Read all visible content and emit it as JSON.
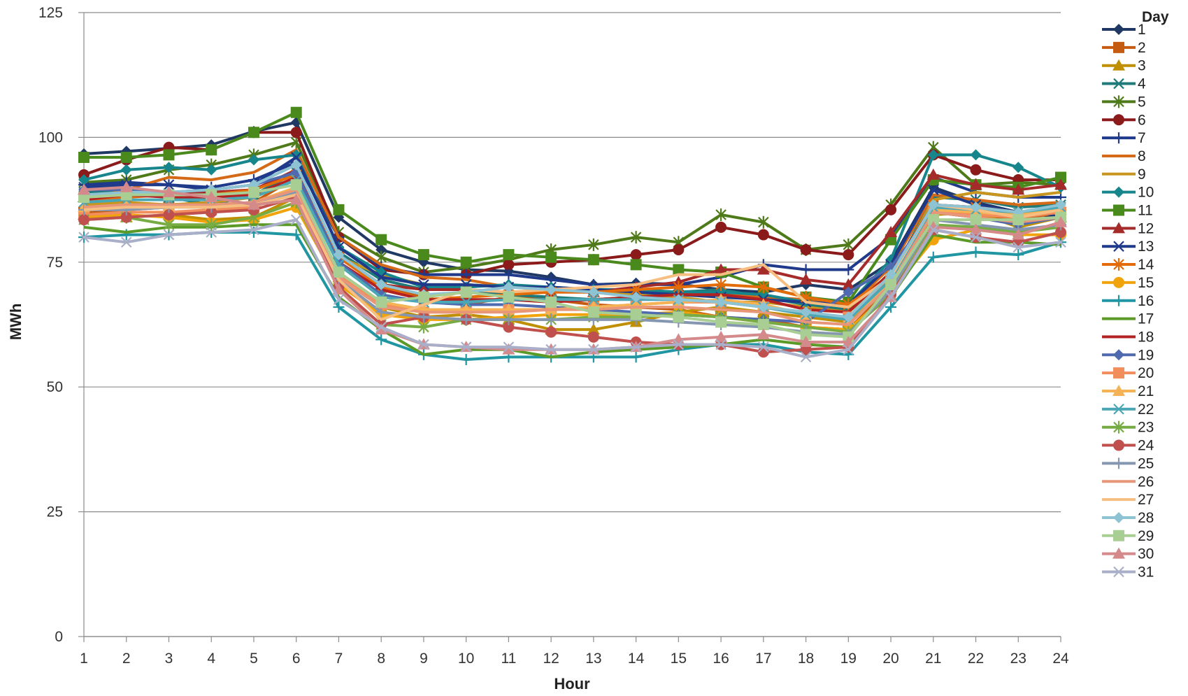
{
  "chart_data": {
    "type": "line",
    "xlabel": "Hour",
    "ylabel": "MWh",
    "legend_title": "Day",
    "legend_position": "right",
    "grid": true,
    "ylim": [
      0,
      125
    ],
    "y_ticks": [
      "0",
      "25",
      "50",
      "75",
      "100",
      "125"
    ],
    "x": [
      1,
      2,
      3,
      4,
      5,
      6,
      7,
      8,
      9,
      10,
      11,
      12,
      13,
      14,
      15,
      16,
      17,
      18,
      19,
      20,
      21,
      22,
      23,
      24
    ],
    "x_ticks": [
      "1",
      "2",
      "3",
      "4",
      "5",
      "6",
      "7",
      "8",
      "9",
      "10",
      "11",
      "12",
      "13",
      "14",
      "15",
      "16",
      "17",
      "18",
      "19",
      "20",
      "21",
      "22",
      "23",
      "24"
    ],
    "series": [
      {
        "name": "1",
        "color": "#1F3864",
        "marker": "diamond",
        "values": [
          96.7,
          97.2,
          97.8,
          98.5,
          101.2,
          103.0,
          84.0,
          77.5,
          75.0,
          73.5,
          73.2,
          72.0,
          70.5,
          70.8,
          70.6,
          69.5,
          69.0,
          70.5,
          69.5,
          75.0,
          90.0,
          87.0,
          85.0,
          84.0
        ]
      },
      {
        "name": "2",
        "color": "#C55A11",
        "marker": "square",
        "values": [
          85.0,
          85.5,
          86.0,
          86.5,
          87.0,
          92.0,
          76.0,
          70.0,
          68.0,
          66.5,
          68.0,
          67.5,
          66.5,
          66.0,
          65.5,
          64.0,
          63.5,
          62.0,
          61.5,
          70.0,
          85.0,
          84.0,
          83.5,
          85.0
        ]
      },
      {
        "name": "3",
        "color": "#BF8F00",
        "marker": "triangle",
        "values": [
          84.5,
          84.0,
          84.5,
          83.5,
          84.0,
          88.0,
          72.0,
          66.0,
          64.0,
          64.5,
          63.5,
          61.5,
          61.5,
          63.0,
          65.0,
          66.0,
          65.0,
          64.0,
          63.0,
          70.0,
          84.5,
          85.0,
          82.0,
          84.0
        ]
      },
      {
        "name": "4",
        "color": "#1F7A7A",
        "marker": "x",
        "values": [
          89.0,
          89.5,
          88.0,
          86.5,
          88.5,
          93.0,
          77.0,
          71.5,
          69.5,
          69.5,
          68.5,
          68.0,
          67.5,
          68.0,
          69.0,
          69.5,
          68.0,
          66.5,
          65.5,
          72.0,
          88.0,
          87.5,
          86.0,
          86.5
        ]
      },
      {
        "name": "5",
        "color": "#4E7A1A",
        "marker": "star",
        "values": [
          91.0,
          91.5,
          93.5,
          94.5,
          96.5,
          99.0,
          81.0,
          76.0,
          73.0,
          74.0,
          75.5,
          77.5,
          78.5,
          80.0,
          79.0,
          84.5,
          83.0,
          77.5,
          78.5,
          86.5,
          98.0,
          90.5,
          91.0,
          90.5
        ]
      },
      {
        "name": "6",
        "color": "#8B1A1A",
        "marker": "circle",
        "values": [
          92.5,
          95.5,
          98.0,
          97.5,
          101.0,
          101.0,
          80.0,
          73.5,
          72.5,
          72.5,
          74.5,
          75.0,
          75.5,
          76.5,
          77.5,
          82.0,
          80.5,
          77.5,
          76.5,
          85.5,
          96.5,
          93.5,
          91.5,
          91.5
        ]
      },
      {
        "name": "7",
        "color": "#1F3A8A",
        "marker": "plus",
        "values": [
          90.5,
          91.0,
          90.5,
          90.0,
          91.5,
          95.0,
          80.0,
          74.0,
          72.5,
          72.5,
          72.5,
          71.5,
          70.5,
          70.5,
          70.5,
          72.0,
          74.5,
          73.5,
          73.5,
          80.0,
          92.0,
          89.0,
          88.0,
          88.0
        ]
      },
      {
        "name": "8",
        "color": "#D46A17",
        "marker": "dash",
        "values": [
          87.5,
          89.5,
          92.0,
          91.5,
          93.0,
          97.5,
          80.0,
          74.5,
          72.0,
          71.5,
          70.0,
          70.0,
          69.0,
          69.5,
          69.0,
          68.5,
          68.0,
          67.5,
          66.0,
          74.0,
          88.5,
          87.5,
          86.5,
          87.0
        ]
      },
      {
        "name": "9",
        "color": "#C8961E",
        "marker": "dash",
        "values": [
          86.5,
          87.0,
          86.5,
          87.0,
          88.0,
          92.0,
          76.0,
          72.5,
          70.5,
          70.5,
          70.0,
          69.5,
          69.0,
          68.5,
          68.0,
          67.0,
          67.0,
          66.0,
          65.0,
          72.0,
          87.5,
          89.0,
          88.0,
          89.0
        ]
      },
      {
        "name": "10",
        "color": "#17868C",
        "marker": "diamond",
        "values": [
          91.5,
          93.5,
          94.0,
          93.5,
          95.5,
          96.5,
          78.0,
          73.0,
          70.0,
          70.0,
          70.5,
          70.0,
          69.5,
          69.5,
          69.0,
          69.0,
          68.5,
          67.0,
          66.5,
          75.5,
          96.5,
          96.5,
          94.0,
          90.0
        ]
      },
      {
        "name": "11",
        "color": "#4A8A1C",
        "marker": "square",
        "values": [
          96.0,
          96.0,
          96.5,
          97.5,
          101.0,
          105.0,
          85.5,
          79.5,
          76.5,
          75.0,
          76.5,
          76.0,
          75.5,
          74.5,
          73.5,
          73.0,
          70.0,
          68.0,
          67.0,
          79.5,
          91.5,
          90.5,
          90.0,
          92.0
        ]
      },
      {
        "name": "12",
        "color": "#A52A2A",
        "marker": "triangle",
        "values": [
          88.0,
          88.5,
          88.5,
          89.0,
          89.5,
          93.5,
          76.5,
          70.5,
          69.5,
          69.5,
          69.0,
          69.0,
          69.0,
          70.0,
          71.0,
          73.5,
          73.5,
          71.5,
          70.5,
          81.0,
          92.5,
          90.5,
          89.5,
          90.5
        ]
      },
      {
        "name": "13",
        "color": "#1F3A8A",
        "marker": "x",
        "values": [
          90.0,
          90.5,
          90.5,
          89.5,
          90.5,
          96.0,
          78.0,
          72.0,
          70.5,
          70.5,
          70.0,
          70.0,
          69.5,
          69.0,
          68.5,
          68.0,
          67.5,
          67.0,
          66.5,
          74.5,
          89.5,
          86.5,
          85.0,
          84.5
        ]
      },
      {
        "name": "14",
        "color": "#E36C09",
        "marker": "star",
        "values": [
          87.0,
          88.0,
          88.5,
          88.5,
          89.5,
          92.5,
          76.0,
          70.0,
          67.5,
          68.0,
          68.5,
          69.0,
          69.0,
          69.5,
          70.0,
          70.5,
          70.0,
          68.0,
          66.5,
          72.5,
          86.5,
          86.0,
          85.0,
          86.0
        ]
      },
      {
        "name": "15",
        "color": "#F0A30A",
        "marker": "circle",
        "values": [
          84.0,
          84.5,
          84.0,
          83.0,
          83.5,
          86.0,
          70.5,
          64.5,
          63.5,
          63.5,
          64.0,
          64.5,
          64.5,
          64.5,
          65.0,
          64.0,
          63.0,
          62.0,
          61.5,
          69.0,
          79.5,
          81.5,
          80.5,
          80.5
        ]
      },
      {
        "name": "16",
        "color": "#2196A3",
        "marker": "plus",
        "values": [
          80.0,
          80.5,
          80.5,
          81.0,
          81.0,
          80.5,
          66.0,
          59.5,
          56.5,
          55.5,
          56.0,
          56.0,
          56.0,
          56.0,
          57.5,
          58.5,
          58.5,
          57.0,
          56.5,
          66.0,
          76.0,
          77.0,
          76.5,
          79.0
        ]
      },
      {
        "name": "17",
        "color": "#5B9A27",
        "marker": "dash",
        "values": [
          82.0,
          81.0,
          82.0,
          82.0,
          82.5,
          82.5,
          68.0,
          61.5,
          56.5,
          57.5,
          57.5,
          56.0,
          57.0,
          57.5,
          58.0,
          58.5,
          59.5,
          58.5,
          58.0,
          68.0,
          80.5,
          79.0,
          79.0,
          78.5
        ]
      },
      {
        "name": "18",
        "color": "#B22222",
        "marker": "dash",
        "values": [
          87.5,
          88.5,
          88.0,
          88.0,
          88.5,
          92.0,
          75.0,
          69.5,
          67.5,
          67.5,
          67.5,
          67.0,
          67.5,
          68.0,
          68.5,
          68.5,
          67.5,
          65.5,
          65.0,
          73.0,
          86.5,
          86.0,
          85.0,
          86.0
        ]
      },
      {
        "name": "19",
        "color": "#4F6AAF",
        "marker": "diamond",
        "values": [
          89.5,
          89.5,
          89.0,
          89.5,
          90.5,
          93.0,
          75.0,
          68.5,
          67.0,
          66.5,
          66.5,
          66.0,
          65.5,
          65.0,
          64.5,
          64.0,
          63.5,
          63.0,
          69.0,
          74.0,
          85.0,
          84.0,
          82.5,
          84.0
        ]
      },
      {
        "name": "20",
        "color": "#F28E5B",
        "marker": "square",
        "values": [
          84.5,
          85.0,
          85.0,
          85.5,
          86.0,
          89.5,
          72.5,
          66.5,
          65.0,
          65.0,
          65.5,
          65.5,
          66.0,
          66.5,
          67.0,
          67.0,
          66.0,
          64.5,
          64.0,
          71.5,
          85.0,
          84.5,
          84.0,
          85.0
        ]
      },
      {
        "name": "21",
        "color": "#F5B355",
        "marker": "triangle",
        "values": [
          86.0,
          86.5,
          86.0,
          86.5,
          87.0,
          90.0,
          73.0,
          67.0,
          65.5,
          65.5,
          65.5,
          65.5,
          66.0,
          66.5,
          67.0,
          67.5,
          66.5,
          64.5,
          63.5,
          71.0,
          85.5,
          85.0,
          84.5,
          85.5
        ]
      },
      {
        "name": "22",
        "color": "#4BA6B5",
        "marker": "x",
        "values": [
          87.0,
          87.5,
          87.5,
          87.5,
          88.0,
          91.5,
          74.5,
          68.0,
          67.0,
          67.0,
          67.5,
          67.5,
          67.5,
          67.5,
          67.5,
          67.0,
          66.0,
          64.5,
          63.5,
          71.5,
          86.0,
          85.5,
          85.0,
          86.0
        ]
      },
      {
        "name": "23",
        "color": "#77AC45",
        "marker": "star",
        "values": [
          83.5,
          84.0,
          82.5,
          82.5,
          84.0,
          87.0,
          70.0,
          62.5,
          62.0,
          63.5,
          63.5,
          63.5,
          64.0,
          64.0,
          64.5,
          64.0,
          63.0,
          62.0,
          61.0,
          68.5,
          82.5,
          82.0,
          81.0,
          82.0
        ]
      },
      {
        "name": "24",
        "color": "#C0504D",
        "marker": "circle",
        "values": [
          83.5,
          84.0,
          84.5,
          85.0,
          85.5,
          88.0,
          70.0,
          62.5,
          64.0,
          63.5,
          62.0,
          61.0,
          60.0,
          59.0,
          58.5,
          58.5,
          57.0,
          57.5,
          58.0,
          68.5,
          81.5,
          80.0,
          79.0,
          81.0
        ]
      },
      {
        "name": "25",
        "color": "#8496B0",
        "marker": "plus",
        "values": [
          85.5,
          85.5,
          86.0,
          86.0,
          86.5,
          89.0,
          71.5,
          65.0,
          64.0,
          63.5,
          63.5,
          63.5,
          63.5,
          63.5,
          63.0,
          62.5,
          62.0,
          61.0,
          60.5,
          69.5,
          83.5,
          82.5,
          81.5,
          82.5
        ]
      },
      {
        "name": "26",
        "color": "#E8967A",
        "marker": "dash",
        "values": [
          86.0,
          86.5,
          86.5,
          86.5,
          87.0,
          89.5,
          72.0,
          66.0,
          65.0,
          65.0,
          65.0,
          65.5,
          65.5,
          66.0,
          66.0,
          65.5,
          65.0,
          63.0,
          62.5,
          70.5,
          85.0,
          84.0,
          83.0,
          84.0
        ]
      },
      {
        "name": "27",
        "color": "#F7BE81",
        "marker": "dash",
        "values": [
          85.5,
          86.0,
          86.0,
          86.0,
          86.5,
          88.5,
          71.5,
          63.5,
          66.5,
          69.5,
          69.0,
          69.5,
          70.0,
          70.5,
          72.5,
          72.5,
          74.5,
          67.0,
          66.0,
          72.0,
          86.5,
          85.5,
          84.0,
          85.5
        ]
      },
      {
        "name": "28",
        "color": "#8DC3D2",
        "marker": "diamond",
        "values": [
          88.5,
          89.0,
          89.0,
          89.5,
          90.5,
          94.5,
          76.5,
          70.5,
          68.5,
          69.0,
          70.0,
          69.5,
          69.0,
          68.0,
          67.5,
          67.0,
          66.0,
          65.0,
          64.0,
          72.5,
          86.5,
          86.0,
          85.0,
          86.5
        ]
      },
      {
        "name": "29",
        "color": "#A9CE94",
        "marker": "square",
        "values": [
          88.0,
          88.5,
          88.5,
          88.5,
          89.0,
          90.5,
          73.0,
          67.0,
          68.0,
          69.0,
          68.0,
          67.0,
          65.0,
          64.5,
          64.0,
          63.0,
          62.5,
          60.5,
          60.0,
          70.5,
          83.5,
          83.5,
          83.5,
          84.0
        ]
      },
      {
        "name": "30",
        "color": "#D48A8A",
        "marker": "triangle",
        "values": [
          89.5,
          90.0,
          89.0,
          88.0,
          86.5,
          87.5,
          69.5,
          61.5,
          58.5,
          58.0,
          57.5,
          57.5,
          57.5,
          58.0,
          59.5,
          60.0,
          60.5,
          59.0,
          59.0,
          68.0,
          82.0,
          81.5,
          80.5,
          83.0
        ]
      },
      {
        "name": "31",
        "color": "#A9AFC8",
        "marker": "x",
        "values": [
          80.0,
          79.0,
          80.5,
          81.0,
          81.5,
          83.5,
          67.5,
          62.0,
          58.5,
          58.0,
          58.0,
          57.5,
          57.5,
          58.0,
          58.5,
          58.5,
          58.0,
          56.0,
          57.5,
          68.0,
          81.5,
          80.0,
          78.0,
          79.0
        ]
      }
    ]
  }
}
